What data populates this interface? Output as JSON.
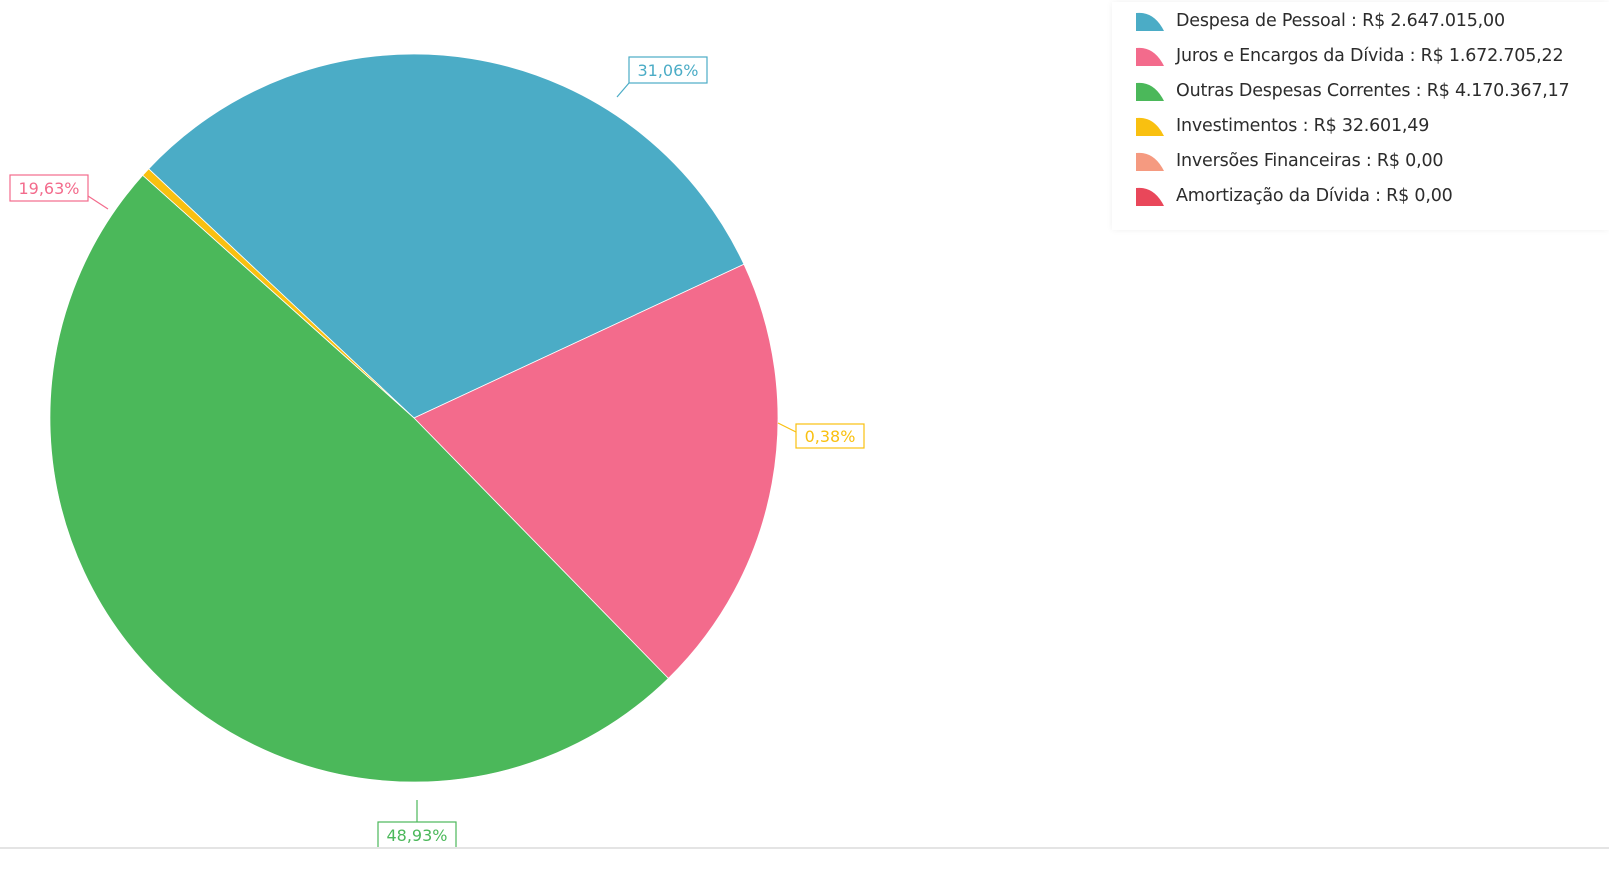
{
  "chart_data": {
    "type": "pie",
    "slices": [
      {
        "name": "Despesa de Pessoal",
        "legend": "Despesa de Pessoal : R$ 2.647.015,00",
        "value": 2647015.0,
        "percent_label": "31,06%",
        "color": "#4bacc6"
      },
      {
        "name": "Juros e Encargos da Dívida",
        "legend": "Juros e Encargos da Dívida : R$ 1.672.705,22",
        "value": 1672705.22,
        "percent_label": "19,63%",
        "color": "#f36b8c"
      },
      {
        "name": "Outras Despesas Correntes",
        "legend": "Outras Despesas Correntes : R$ 4.170.367,17",
        "value": 4170367.17,
        "percent_label": "48,93%",
        "color": "#4bb85a"
      },
      {
        "name": "Investimentos",
        "legend": "Investimentos : R$ 32.601,49",
        "value": 32601.49,
        "percent_label": "0,38%",
        "color": "#f9c010"
      },
      {
        "name": "Inversões Financeiras",
        "legend": "Inversões Financeiras : R$ 0,00",
        "value": 0,
        "percent_label": "",
        "color": "#f59a80"
      },
      {
        "name": "Amortização da Dívida",
        "legend": "Amortização da Dívida : R$ 0,00",
        "value": 0,
        "percent_label": "",
        "color": "#e9475a"
      }
    ],
    "legend_position": "top-right"
  },
  "legend": {
    "items": [
      {
        "label": "Despesa de Pessoal : R$ 2.647.015,00",
        "color": "#4bacc6"
      },
      {
        "label": "Juros e Encargos da Dívida : R$ 1.672.705,22",
        "color": "#f36b8c"
      },
      {
        "label": "Outras Despesas Correntes : R$ 4.170.367,17",
        "color": "#4bb85a"
      },
      {
        "label": "Investimentos : R$ 32.601,49",
        "color": "#f9c010"
      },
      {
        "label": "Inversões Financeiras : R$ 0,00",
        "color": "#f59a80"
      },
      {
        "label": "Amortização da Dívida : R$ 0,00",
        "color": "#e9475a"
      }
    ]
  }
}
